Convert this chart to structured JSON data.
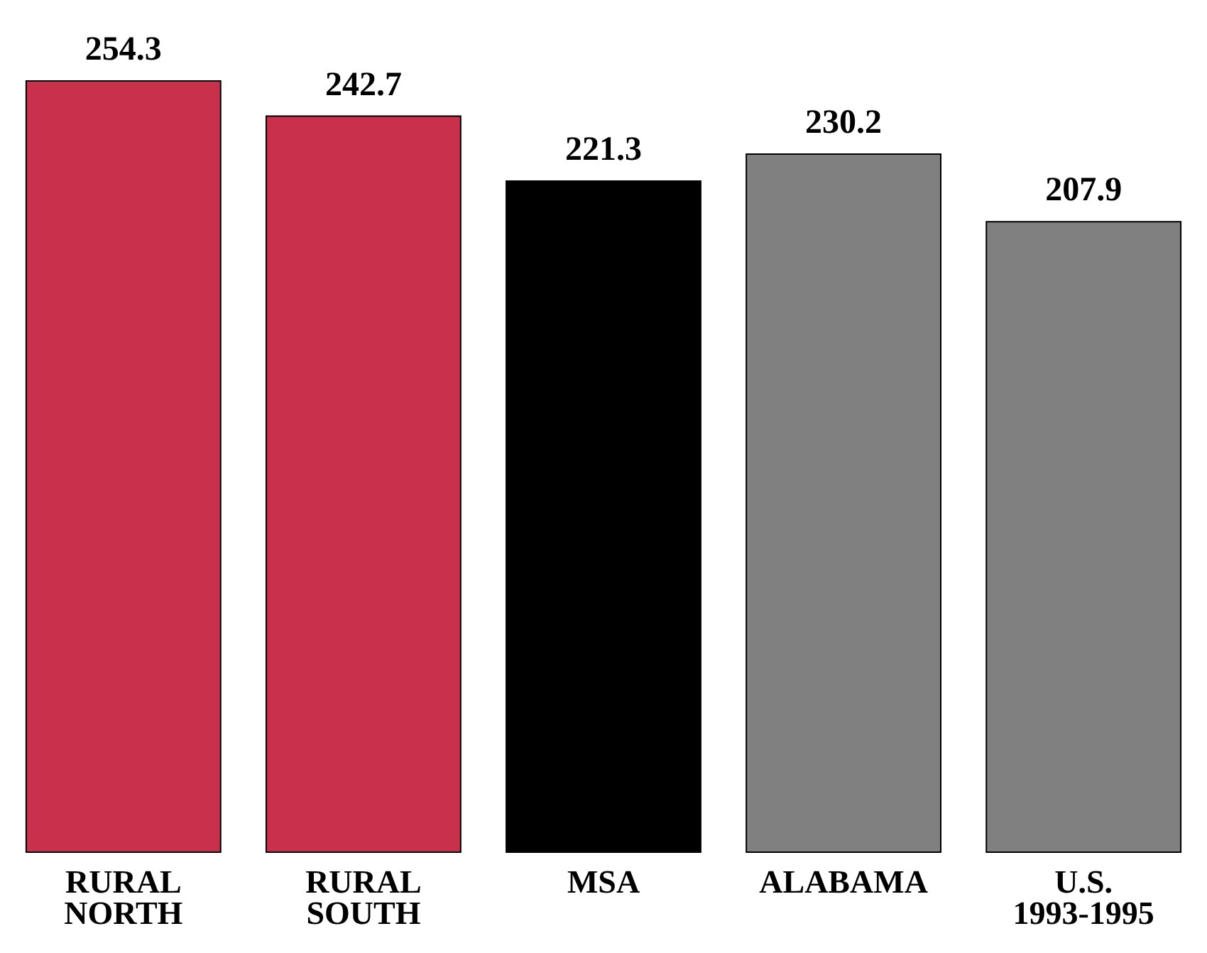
{
  "chart_data": {
    "type": "bar",
    "categories": [
      "RURAL NORTH",
      "RURAL SOUTH",
      "MSA",
      "ALABAMA",
      "U.S. 1993-1995"
    ],
    "values": [
      254.3,
      242.7,
      221.3,
      230.2,
      207.9
    ],
    "colors": [
      "#c8304b",
      "#c8304b",
      "#000000",
      "#808080",
      "#808080"
    ],
    "data_labels": true
  }
}
